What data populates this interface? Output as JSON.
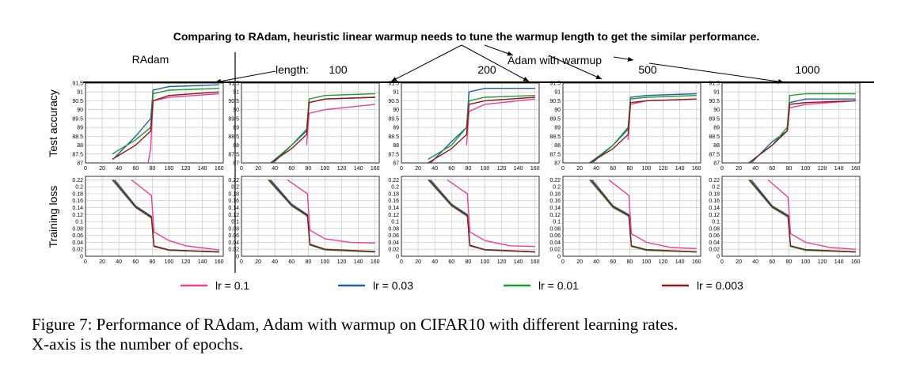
{
  "figure": {
    "headline": "Comparing to RAdam, heuristic linear warmup needs to tune the warmup length to get the similar performance.",
    "radam_label": "RAdam",
    "length_label": "length:",
    "adam_label": "Adam with warmup",
    "col_titles": [
      "",
      "100",
      "200",
      "500",
      "1000"
    ],
    "row_labels": [
      "Test accuracy",
      "Training loss"
    ],
    "legend": [
      "lr = 0.1",
      "lr = 0.03",
      "lr = 0.01",
      "lr = 0.003"
    ]
  },
  "caption": {
    "line1": "Figure 7: Performance of RAdam, Adam with warmup on CIFAR10 with different learning rates.",
    "line2": "X-axis is the number of epochs."
  },
  "chart_data": {
    "type": "line",
    "panels_layout": "2 rows (Test accuracy, Training loss) x 5 columns (RAdam, warmup 100, 200, 500, 1000)",
    "x_ticks": [
      0,
      20,
      40,
      60,
      80,
      100,
      120,
      140,
      160
    ],
    "xlim": [
      0,
      165
    ],
    "accuracy_ylim": [
      87,
      91.5
    ],
    "accuracy_yticks": [
      "87",
      "87.5",
      "88",
      "88.5",
      "89",
      "89.5",
      "90",
      "90.5",
      "91",
      "91.5"
    ],
    "loss_ylim": [
      0,
      0.23
    ],
    "loss_yticks": [
      "0",
      "0.02",
      "0.04",
      "0.06",
      "0.08",
      "0.1",
      "0.12",
      "0.14",
      "0.16",
      "0.18",
      "0.2",
      "0.22"
    ],
    "grid": true,
    "colors": {
      "lr = 0.1": "#ee3d96",
      "lr = 0.03": "#1f5fa8",
      "lr = 0.01": "#1e9a2e",
      "lr = 0.003": "#8b1a1a"
    },
    "panels": [
      {
        "accuracy": {
          "lr = 0.1": [
            [
              75,
              87
            ],
            [
              78,
              87.8
            ],
            [
              81,
              90.5
            ],
            [
              100,
              90.7
            ],
            [
              160,
              90.9
            ]
          ],
          "lr = 0.03": [
            [
              35,
              87.3
            ],
            [
              60,
              88.5
            ],
            [
              78,
              89.5
            ],
            [
              81,
              91.1
            ],
            [
              100,
              91.3
            ],
            [
              160,
              91.4
            ]
          ],
          "lr = 0.01": [
            [
              32,
              87.5
            ],
            [
              60,
              88.3
            ],
            [
              78,
              89.0
            ],
            [
              81,
              90.9
            ],
            [
              100,
              91.1
            ],
            [
              160,
              91.2
            ]
          ],
          "lr = 0.003": [
            [
              32,
              87.2
            ],
            [
              60,
              88.0
            ],
            [
              78,
              88.8
            ],
            [
              81,
              90.5
            ],
            [
              100,
              90.8
            ],
            [
              160,
              91.0
            ]
          ]
        },
        "loss": {
          "lr = 0.1": [
            [
              55,
              0.22
            ],
            [
              79,
              0.175
            ],
            [
              82,
              0.07
            ],
            [
              100,
              0.045
            ],
            [
              120,
              0.03
            ],
            [
              160,
              0.018
            ]
          ],
          "lr = 0.03": [
            [
              35,
              0.22
            ],
            [
              60,
              0.145
            ],
            [
              79,
              0.115
            ],
            [
              82,
              0.03
            ],
            [
              100,
              0.018
            ],
            [
              160,
              0.012
            ]
          ],
          "lr = 0.01": [
            [
              32,
              0.22
            ],
            [
              60,
              0.14
            ],
            [
              79,
              0.11
            ],
            [
              82,
              0.028
            ],
            [
              100,
              0.017
            ],
            [
              160,
              0.012
            ]
          ],
          "lr = 0.003": [
            [
              33,
              0.22
            ],
            [
              60,
              0.142
            ],
            [
              79,
              0.112
            ],
            [
              82,
              0.029
            ],
            [
              100,
              0.018
            ],
            [
              160,
              0.013
            ]
          ]
        }
      },
      {
        "accuracy": {
          "lr = 0.1": [
            [
              78,
              88.0
            ],
            [
              81,
              89.8
            ],
            [
              100,
              90.0
            ],
            [
              160,
              90.3
            ]
          ],
          "lr = 0.03": [
            [
              38,
              87.0
            ],
            [
              60,
              88.0
            ],
            [
              78,
              88.8
            ],
            [
              81,
              90.4
            ],
            [
              100,
              90.6
            ],
            [
              160,
              90.7
            ]
          ],
          "lr = 0.01": [
            [
              35,
              87.0
            ],
            [
              60,
              88.0
            ],
            [
              78,
              88.9
            ],
            [
              81,
              90.6
            ],
            [
              100,
              90.8
            ],
            [
              160,
              90.9
            ]
          ],
          "lr = 0.003": [
            [
              35,
              87.0
            ],
            [
              60,
              87.8
            ],
            [
              78,
              88.6
            ],
            [
              81,
              90.4
            ],
            [
              100,
              90.6
            ],
            [
              160,
              90.7
            ]
          ]
        },
        "loss": {
          "lr = 0.1": [
            [
              55,
              0.22
            ],
            [
              79,
              0.18
            ],
            [
              82,
              0.075
            ],
            [
              100,
              0.05
            ],
            [
              130,
              0.04
            ],
            [
              160,
              0.038
            ]
          ],
          "lr = 0.03": [
            [
              35,
              0.22
            ],
            [
              60,
              0.15
            ],
            [
              79,
              0.12
            ],
            [
              82,
              0.035
            ],
            [
              100,
              0.02
            ],
            [
              160,
              0.013
            ]
          ],
          "lr = 0.01": [
            [
              32,
              0.22
            ],
            [
              60,
              0.145
            ],
            [
              79,
              0.115
            ],
            [
              82,
              0.032
            ],
            [
              100,
              0.018
            ],
            [
              160,
              0.012
            ]
          ],
          "lr = 0.003": [
            [
              33,
              0.22
            ],
            [
              60,
              0.147
            ],
            [
              79,
              0.117
            ],
            [
              82,
              0.034
            ],
            [
              100,
              0.02
            ],
            [
              160,
              0.014
            ]
          ]
        }
      },
      {
        "accuracy": {
          "lr = 0.1": [
            [
              78,
              88.0
            ],
            [
              81,
              89.9
            ],
            [
              100,
              90.3
            ],
            [
              160,
              90.6
            ]
          ],
          "lr = 0.03": [
            [
              35,
              87.0
            ],
            [
              60,
              88.2
            ],
            [
              78,
              89.0
            ],
            [
              81,
              91.0
            ],
            [
              100,
              91.2
            ],
            [
              160,
              91.2
            ]
          ],
          "lr = 0.01": [
            [
              32,
              87.2
            ],
            [
              60,
              88.0
            ],
            [
              78,
              89.0
            ],
            [
              81,
              90.5
            ],
            [
              100,
              90.7
            ],
            [
              160,
              90.8
            ]
          ],
          "lr = 0.003": [
            [
              32,
              87.0
            ],
            [
              60,
              87.8
            ],
            [
              78,
              88.6
            ],
            [
              81,
              90.3
            ],
            [
              100,
              90.5
            ],
            [
              160,
              90.7
            ]
          ]
        },
        "loss": {
          "lr = 0.1": [
            [
              55,
              0.22
            ],
            [
              79,
              0.18
            ],
            [
              82,
              0.07
            ],
            [
              100,
              0.045
            ],
            [
              130,
              0.03
            ],
            [
              160,
              0.028
            ]
          ],
          "lr = 0.03": [
            [
              35,
              0.22
            ],
            [
              60,
              0.15
            ],
            [
              79,
              0.12
            ],
            [
              82,
              0.032
            ],
            [
              100,
              0.019
            ],
            [
              160,
              0.012
            ]
          ],
          "lr = 0.01": [
            [
              32,
              0.22
            ],
            [
              60,
              0.145
            ],
            [
              79,
              0.115
            ],
            [
              82,
              0.03
            ],
            [
              100,
              0.018
            ],
            [
              160,
              0.012
            ]
          ],
          "lr = 0.003": [
            [
              33,
              0.22
            ],
            [
              60,
              0.147
            ],
            [
              79,
              0.117
            ],
            [
              82,
              0.031
            ],
            [
              100,
              0.019
            ],
            [
              160,
              0.013
            ]
          ]
        }
      },
      {
        "accuracy": {
          "lr = 0.1": [
            [
              78,
              88.3
            ],
            [
              81,
              90.3
            ],
            [
              100,
              90.5
            ],
            [
              160,
              90.6
            ]
          ],
          "lr = 0.03": [
            [
              35,
              87.0
            ],
            [
              60,
              88.0
            ],
            [
              78,
              88.9
            ],
            [
              81,
              90.7
            ],
            [
              100,
              90.8
            ],
            [
              160,
              90.9
            ]
          ],
          "lr = 0.01": [
            [
              32,
              87.0
            ],
            [
              60,
              88.0
            ],
            [
              78,
              89.0
            ],
            [
              81,
              90.6
            ],
            [
              100,
              90.7
            ],
            [
              160,
              90.8
            ]
          ],
          "lr = 0.003": [
            [
              32,
              87.0
            ],
            [
              60,
              87.8
            ],
            [
              78,
              88.6
            ],
            [
              81,
              90.4
            ],
            [
              100,
              90.5
            ],
            [
              160,
              90.6
            ]
          ]
        },
        "loss": {
          "lr = 0.1": [
            [
              55,
              0.22
            ],
            [
              79,
              0.175
            ],
            [
              82,
              0.065
            ],
            [
              100,
              0.04
            ],
            [
              130,
              0.025
            ],
            [
              160,
              0.022
            ]
          ],
          "lr = 0.03": [
            [
              35,
              0.22
            ],
            [
              60,
              0.145
            ],
            [
              79,
              0.12
            ],
            [
              82,
              0.03
            ],
            [
              100,
              0.019
            ],
            [
              160,
              0.012
            ]
          ],
          "lr = 0.01": [
            [
              32,
              0.22
            ],
            [
              60,
              0.14
            ],
            [
              79,
              0.115
            ],
            [
              82,
              0.028
            ],
            [
              100,
              0.017
            ],
            [
              160,
              0.012
            ]
          ],
          "lr = 0.003": [
            [
              33,
              0.22
            ],
            [
              60,
              0.143
            ],
            [
              79,
              0.117
            ],
            [
              82,
              0.03
            ],
            [
              100,
              0.019
            ],
            [
              160,
              0.013
            ]
          ]
        }
      },
      {
        "accuracy": {
          "lr = 0.1": [
            [
              78,
              88.8
            ],
            [
              81,
              90.1
            ],
            [
              100,
              90.3
            ],
            [
              160,
              90.5
            ]
          ],
          "lr = 0.03": [
            [
              35,
              87.0
            ],
            [
              60,
              88.2
            ],
            [
              78,
              88.8
            ],
            [
              81,
              90.4
            ],
            [
              100,
              90.6
            ],
            [
              160,
              90.6
            ]
          ],
          "lr = 0.01": [
            [
              32,
              87.0
            ],
            [
              60,
              88.0
            ],
            [
              78,
              89.0
            ],
            [
              81,
              90.8
            ],
            [
              100,
              90.9
            ],
            [
              160,
              90.9
            ]
          ],
          "lr = 0.003": [
            [
              32,
              87.0
            ],
            [
              60,
              88.0
            ],
            [
              78,
              88.8
            ],
            [
              81,
              90.3
            ],
            [
              100,
              90.4
            ],
            [
              160,
              90.5
            ]
          ]
        },
        "loss": {
          "lr = 0.1": [
            [
              55,
              0.22
            ],
            [
              79,
              0.17
            ],
            [
              82,
              0.065
            ],
            [
              100,
              0.04
            ],
            [
              130,
              0.025
            ],
            [
              160,
              0.02
            ]
          ],
          "lr = 0.03": [
            [
              35,
              0.22
            ],
            [
              60,
              0.145
            ],
            [
              79,
              0.118
            ],
            [
              82,
              0.03
            ],
            [
              100,
              0.019
            ],
            [
              160,
              0.012
            ]
          ],
          "lr = 0.01": [
            [
              32,
              0.22
            ],
            [
              60,
              0.14
            ],
            [
              79,
              0.113
            ],
            [
              82,
              0.028
            ],
            [
              100,
              0.017
            ],
            [
              160,
              0.012
            ]
          ],
          "lr = 0.003": [
            [
              33,
              0.22
            ],
            [
              60,
              0.143
            ],
            [
              79,
              0.115
            ],
            [
              82,
              0.03
            ],
            [
              100,
              0.019
            ],
            [
              160,
              0.013
            ]
          ]
        }
      }
    ]
  }
}
